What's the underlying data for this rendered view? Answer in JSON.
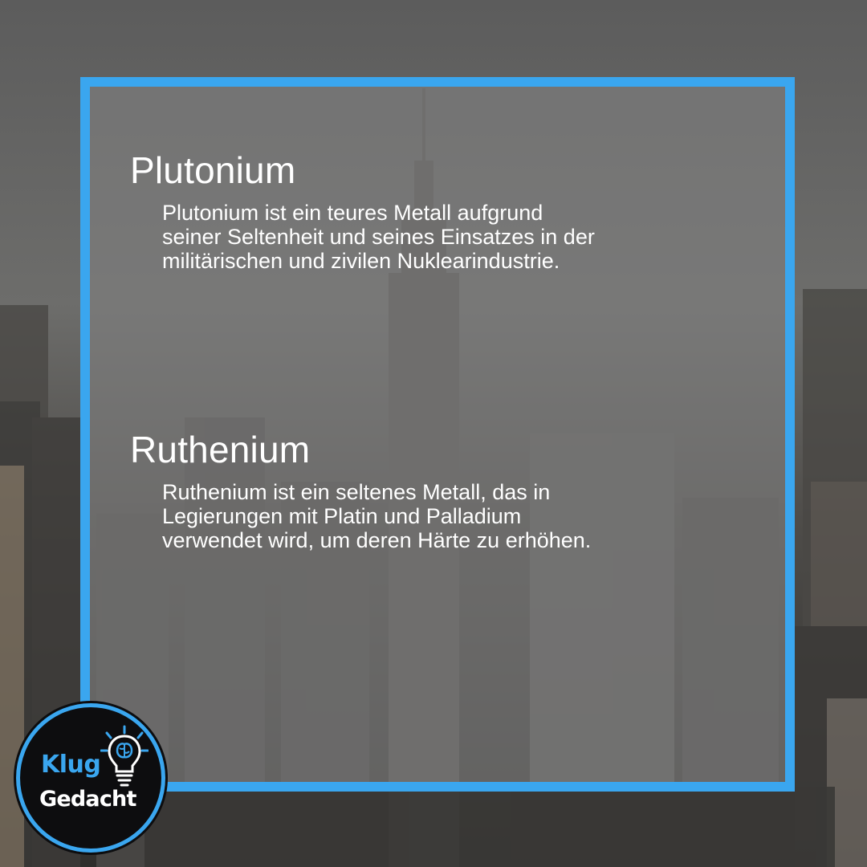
{
  "sections": [
    {
      "title": "Plutonium",
      "lines": [
        "Plutonium ist ein teures Metall aufgrund",
        "seiner Seltenheit und seines Einsatzes in der",
        "militärischen und zivilen Nuklearindustrie."
      ]
    },
    {
      "title": "Ruthenium",
      "lines": [
        "Ruthenium ist ein seltenes Metall, das in",
        "Legierungen mit Platin und Palladium",
        "verwendet wird, um deren Härte zu erhöhen."
      ]
    }
  ],
  "logo": {
    "word1": "Klug",
    "word2": "Gedacht",
    "icon": "lightbulb-brain-icon"
  },
  "colors": {
    "accent": "#3aa6ef",
    "panel": "#808080",
    "text": "#ffffff"
  }
}
